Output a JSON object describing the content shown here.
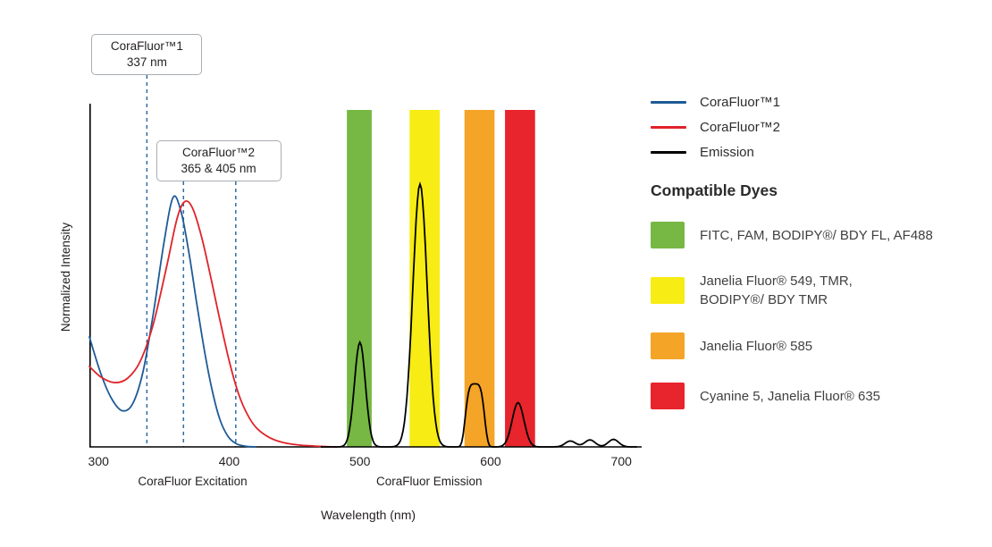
{
  "chart_data": {
    "type": "line",
    "title": "",
    "xlabel": "Wavelength (nm)",
    "ylabel": "Normalized Intensity",
    "x_ticks": [
      "300",
      "400",
      "500",
      "600",
      "700"
    ],
    "x_tick_values": [
      300,
      400,
      500,
      600,
      700
    ],
    "x_range_nm": [
      293,
      712
    ],
    "y_range": [
      0,
      1.1
    ],
    "grid": false,
    "legend_position": "top-right",
    "marker_color": "#2e6da4",
    "axis_sublabels": [
      {
        "text": "CoraFluor Excitation",
        "nm": 372
      },
      {
        "text": "CoraFluor Emission",
        "nm": 553
      }
    ],
    "callouts": [
      {
        "line1": "CoraFluor™1",
        "line2": "337 nm",
        "marker_nm": [
          337
        ]
      },
      {
        "line1": "CoraFluor™2",
        "line2": "365 & 405 nm",
        "marker_nm": [
          365,
          405
        ]
      }
    ],
    "filter_bands": [
      {
        "nm_start": 490,
        "nm_end": 509,
        "color": "#76b843",
        "label": "FITC / FAM / BODIPY BDY FL / AF488 band"
      },
      {
        "nm_start": 538,
        "nm_end": 561,
        "color": "#f7ec13",
        "label": "Janelia Fluor 549 / TMR / BODIPY BDY TMR band"
      },
      {
        "nm_start": 580,
        "nm_end": 603,
        "color": "#f4a427",
        "label": "Janelia Fluor 585 band"
      },
      {
        "nm_start": 611,
        "nm_end": 634,
        "color": "#e8242c",
        "label": "Cyanine 5 / Janelia Fluor 635 band"
      }
    ],
    "series": [
      {
        "name": "CoraFluor™1",
        "color": "#1e5b96",
        "kind": "excitation",
        "points": [
          [
            293,
            0.41
          ],
          [
            302,
            0.27
          ],
          [
            310,
            0.18
          ],
          [
            318,
            0.135
          ],
          [
            326,
            0.16
          ],
          [
            334,
            0.28
          ],
          [
            342,
            0.5
          ],
          [
            350,
            0.76
          ],
          [
            357,
            0.93
          ],
          [
            363,
            0.88
          ],
          [
            369,
            0.73
          ],
          [
            375,
            0.54
          ],
          [
            381,
            0.36
          ],
          [
            387,
            0.21
          ],
          [
            393,
            0.1
          ],
          [
            399,
            0.04
          ],
          [
            405,
            0.013
          ],
          [
            412,
            0.003
          ],
          [
            420,
            0
          ]
        ]
      },
      {
        "name": "CoraFluor™2",
        "color": "#e02329",
        "kind": "excitation",
        "points": [
          [
            293,
            0.3
          ],
          [
            302,
            0.26
          ],
          [
            312,
            0.24
          ],
          [
            322,
            0.255
          ],
          [
            332,
            0.32
          ],
          [
            342,
            0.46
          ],
          [
            352,
            0.67
          ],
          [
            360,
            0.85
          ],
          [
            366,
            0.915
          ],
          [
            372,
            0.89
          ],
          [
            379,
            0.78
          ],
          [
            386,
            0.63
          ],
          [
            393,
            0.47
          ],
          [
            400,
            0.32
          ],
          [
            407,
            0.2
          ],
          [
            414,
            0.12
          ],
          [
            421,
            0.07
          ],
          [
            430,
            0.037
          ],
          [
            440,
            0.018
          ],
          [
            452,
            0.008
          ],
          [
            466,
            0.003
          ],
          [
            482,
            0
          ]
        ]
      },
      {
        "name": "Emission",
        "color": "#000000",
        "kind": "emission",
        "peaks": [
          {
            "center": 500,
            "amp": 0.39,
            "sigma": 4.2
          },
          {
            "center": 546,
            "amp": 0.98,
            "sigma": 5.5
          },
          {
            "center": 588,
            "amp": 0.235,
            "width": 8,
            "shape": "flattop"
          },
          {
            "center": 621,
            "amp": 0.165,
            "sigma": 4.5
          },
          {
            "center": 661,
            "amp": 0.022,
            "sigma": 4
          },
          {
            "center": 676,
            "amp": 0.026,
            "sigma": 4
          },
          {
            "center": 694,
            "amp": 0.028,
            "sigma": 4
          }
        ]
      }
    ]
  },
  "legend": {
    "items": [
      {
        "label": "CoraFluor™1",
        "color": "#1e5b96"
      },
      {
        "label": "CoraFluor™2",
        "color": "#e02329"
      },
      {
        "label": "Emission",
        "color": "#000000"
      }
    ]
  },
  "dyes": {
    "heading": "Compatible Dyes",
    "items": [
      {
        "color": "#76b843",
        "label": "FITC, FAM, BODIPY®/ BDY FL, AF488"
      },
      {
        "color": "#f7ec13",
        "label": "Janelia Fluor® 549, TMR,\nBODIPY®/ BDY TMR"
      },
      {
        "color": "#f4a427",
        "label": "Janelia Fluor® 585"
      },
      {
        "color": "#e8242c",
        "label": "Cyanine 5, Janelia Fluor® 635"
      }
    ]
  }
}
